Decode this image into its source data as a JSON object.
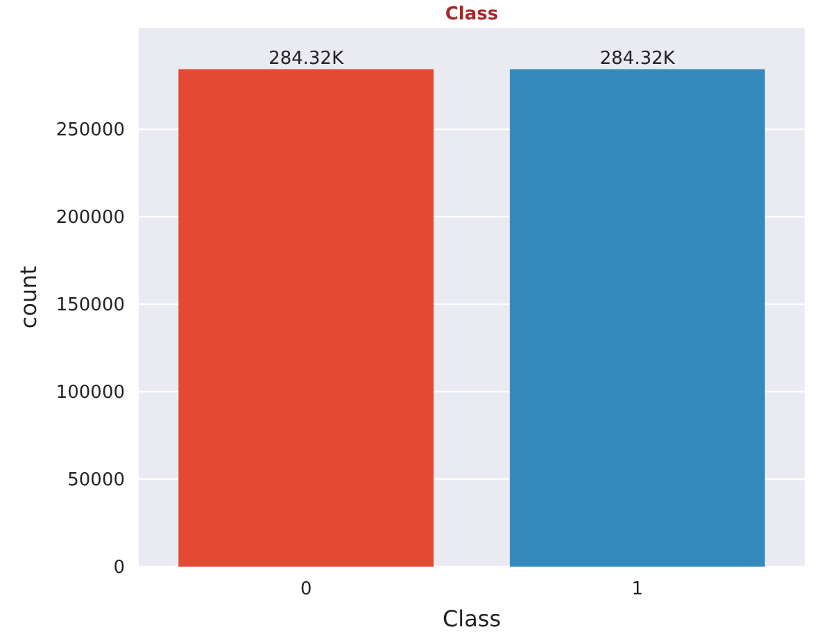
{
  "chart_data": {
    "type": "bar",
    "title": "Class",
    "xlabel": "Class",
    "ylabel": "count",
    "categories": [
      "0",
      "1"
    ],
    "values": [
      284315,
      284315
    ],
    "colors": [
      "#e24a33",
      "#348abd"
    ],
    "value_labels": [
      "284.32K",
      "284.32K"
    ],
    "ylim": [
      0,
      308000
    ],
    "yticks": [
      0,
      50000,
      100000,
      150000,
      200000,
      250000
    ],
    "grid": "y"
  }
}
